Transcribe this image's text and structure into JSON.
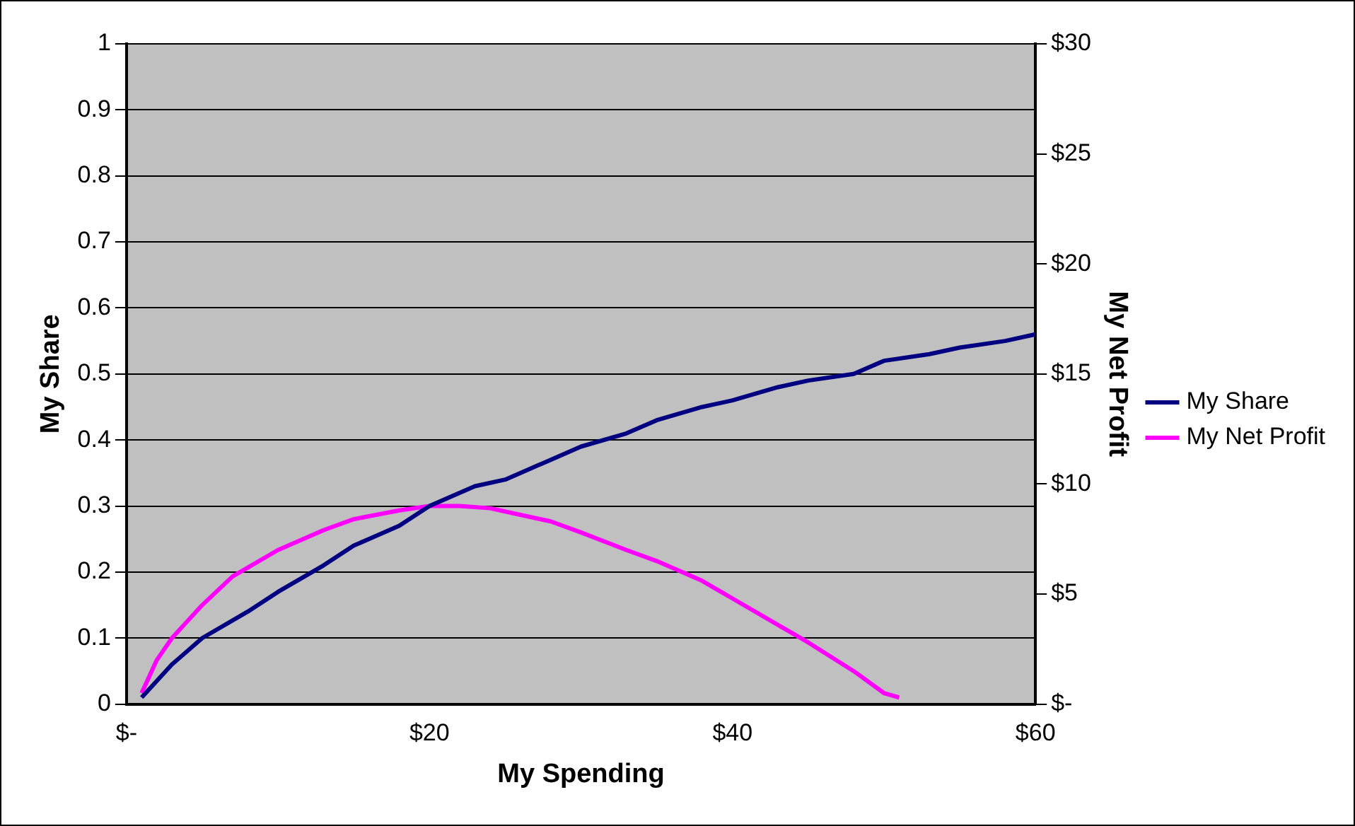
{
  "chart_data": {
    "type": "line",
    "xlabel": "My Spending",
    "ylabel": "My Share",
    "y2label": "My Net Profit",
    "xlim": [
      0,
      60
    ],
    "xticks": [
      {
        "value": 0,
        "label": "$-"
      },
      {
        "value": 20,
        "label": "$20"
      },
      {
        "value": 40,
        "label": "$40"
      },
      {
        "value": 60,
        "label": "$60"
      }
    ],
    "ylim": [
      0,
      1
    ],
    "yticks": [
      0,
      0.1,
      0.2,
      0.3,
      0.4,
      0.5,
      0.6,
      0.7,
      0.8,
      0.9,
      1
    ],
    "y2lim": [
      0,
      30
    ],
    "y2ticks": [
      {
        "value": 0,
        "label": "$-"
      },
      {
        "value": 5,
        "label": "$5"
      },
      {
        "value": 10,
        "label": "$10"
      },
      {
        "value": 15,
        "label": "$15"
      },
      {
        "value": 20,
        "label": "$20"
      },
      {
        "value": 25,
        "label": "$25"
      },
      {
        "value": 30,
        "label": "$30"
      }
    ],
    "grid": "y",
    "legend": "right",
    "marker": "none",
    "series": [
      {
        "name": "My Share",
        "color": "#000080",
        "x": [
          1,
          3,
          5,
          8,
          10,
          13,
          15,
          18,
          20,
          23,
          25,
          28,
          30,
          33,
          35,
          38,
          40,
          43,
          45,
          48,
          50,
          53,
          55,
          58,
          60
        ],
        "values": [
          0.01,
          0.06,
          0.1,
          0.14,
          0.17,
          0.21,
          0.24,
          0.27,
          0.3,
          0.33,
          0.34,
          0.37,
          0.39,
          0.41,
          0.43,
          0.45,
          0.46,
          0.48,
          0.49,
          0.5,
          0.52,
          0.53,
          0.54,
          0.55,
          0.56
        ]
      },
      {
        "name": "My Net Profit",
        "color": "#ff00ff",
        "axis": "y2",
        "x": [
          1,
          2,
          3,
          5,
          7,
          10,
          13,
          15,
          18,
          20,
          22,
          24,
          26,
          28,
          30,
          33,
          35,
          38,
          40,
          43,
          45,
          48,
          50,
          51
        ],
        "values": [
          0.5,
          2,
          3,
          4.5,
          5.8,
          7,
          7.9,
          8.4,
          8.8,
          9,
          9,
          8.9,
          8.6,
          8.3,
          7.8,
          7,
          6.5,
          5.6,
          4.8,
          3.6,
          2.8,
          1.5,
          0.5,
          0.3
        ]
      }
    ]
  }
}
